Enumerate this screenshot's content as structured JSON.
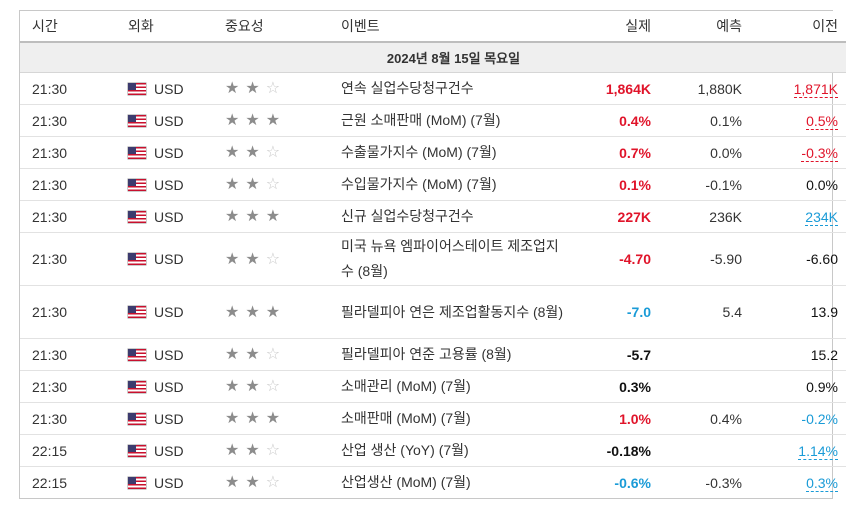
{
  "headers": {
    "time": "시간",
    "currency": "외화",
    "importance": "중요성",
    "event": "이벤트",
    "actual": "실제",
    "forecast": "예측",
    "previous": "이전"
  },
  "date_label": "2024년 8월 15일 목요일",
  "star_symbols": {
    "on": "★",
    "off": "☆"
  },
  "colors": {
    "red": "#e0142a",
    "blue": "#1a9bd7"
  },
  "events": [
    {
      "time": "21:30",
      "currency": "USD",
      "stars": 2,
      "event": "연속 실업수당청구건수",
      "actual": "1,864K",
      "actual_color": "red",
      "forecast": "1,880K",
      "previous": "1,871K",
      "previous_style": "u-red"
    },
    {
      "time": "21:30",
      "currency": "USD",
      "stars": 3,
      "event": "근원 소매판매 (MoM) (7월)",
      "actual": "0.4%",
      "actual_color": "red",
      "forecast": "0.1%",
      "previous": "0.5%",
      "previous_style": "u-red"
    },
    {
      "time": "21:30",
      "currency": "USD",
      "stars": 2,
      "event": "수출물가지수 (MoM) (7월)",
      "actual": "0.7%",
      "actual_color": "red",
      "forecast": "0.0%",
      "previous": "-0.3%",
      "previous_style": "u-red"
    },
    {
      "time": "21:30",
      "currency": "USD",
      "stars": 2,
      "event": "수입물가지수 (MoM) (7월)",
      "actual": "0.1%",
      "actual_color": "red",
      "forecast": "-0.1%",
      "previous": "0.0%",
      "previous_style": "black"
    },
    {
      "time": "21:30",
      "currency": "USD",
      "stars": 3,
      "event": "신규 실업수당청구건수",
      "actual": "227K",
      "actual_color": "red",
      "forecast": "236K",
      "previous": "234K",
      "previous_style": "u-blue"
    },
    {
      "time": "21:30",
      "currency": "USD",
      "stars": 2,
      "event": "미국 뉴욕 엠파이어스테이트 제조업지수 (8월)",
      "actual": "-4.70",
      "actual_color": "red",
      "forecast": "-5.90",
      "previous": "-6.60",
      "previous_style": "black",
      "tall": true
    },
    {
      "time": "21:30",
      "currency": "USD",
      "stars": 3,
      "event": "필라델피아 연은 제조업활동지수 (8월)",
      "actual": "-7.0",
      "actual_color": "blue",
      "forecast": "5.4",
      "previous": "13.9",
      "previous_style": "black",
      "tall": true
    },
    {
      "time": "21:30",
      "currency": "USD",
      "stars": 2,
      "event": "필라델피아 연준 고용률 (8월)",
      "actual": "-5.7",
      "actual_color": "black",
      "forecast": "",
      "previous": "15.2",
      "previous_style": "black"
    },
    {
      "time": "21:30",
      "currency": "USD",
      "stars": 2,
      "event": "소매관리 (MoM) (7월)",
      "actual": "0.3%",
      "actual_color": "black",
      "forecast": "",
      "previous": "0.9%",
      "previous_style": "black"
    },
    {
      "time": "21:30",
      "currency": "USD",
      "stars": 3,
      "event": "소매판매 (MoM) (7월)",
      "actual": "1.0%",
      "actual_color": "red",
      "forecast": "0.4%",
      "previous": "-0.2%",
      "previous_style": "blue"
    },
    {
      "time": "22:15",
      "currency": "USD",
      "stars": 2,
      "event": "산업 생산 (YoY) (7월)",
      "actual": "-0.18%",
      "actual_color": "black",
      "forecast": "",
      "previous": "1.14%",
      "previous_style": "u-blue"
    },
    {
      "time": "22:15",
      "currency": "USD",
      "stars": 2,
      "event": "산업생산 (MoM) (7월)",
      "actual": "-0.6%",
      "actual_color": "blue",
      "forecast": "-0.3%",
      "previous": "0.3%",
      "previous_style": "u-blue"
    }
  ]
}
